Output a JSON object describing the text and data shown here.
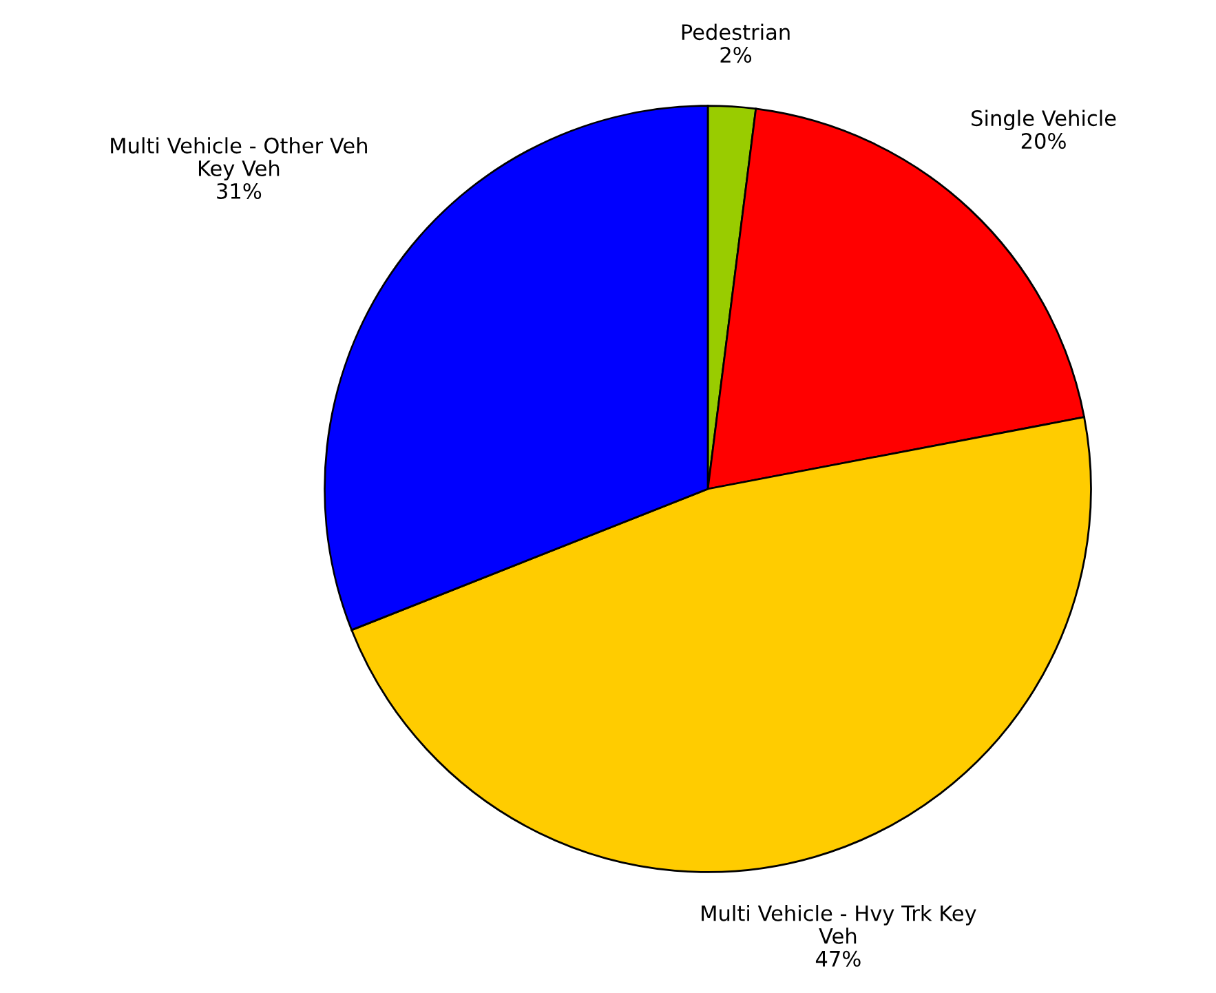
{
  "chart_data": {
    "type": "pie",
    "categories": [
      "Pedestrian",
      "Single Vehicle",
      "Multi Vehicle - Hvy Trk Key\nVeh",
      "Multi Vehicle - Other Veh\nKey Veh"
    ],
    "values": [
      2,
      20,
      47,
      31
    ],
    "value_labels": [
      "2%",
      "20%",
      "47%",
      "31%"
    ],
    "colors": [
      "#99cc00",
      "#ff0000",
      "#ffcc00",
      "#0000ff"
    ],
    "legend": false
  }
}
